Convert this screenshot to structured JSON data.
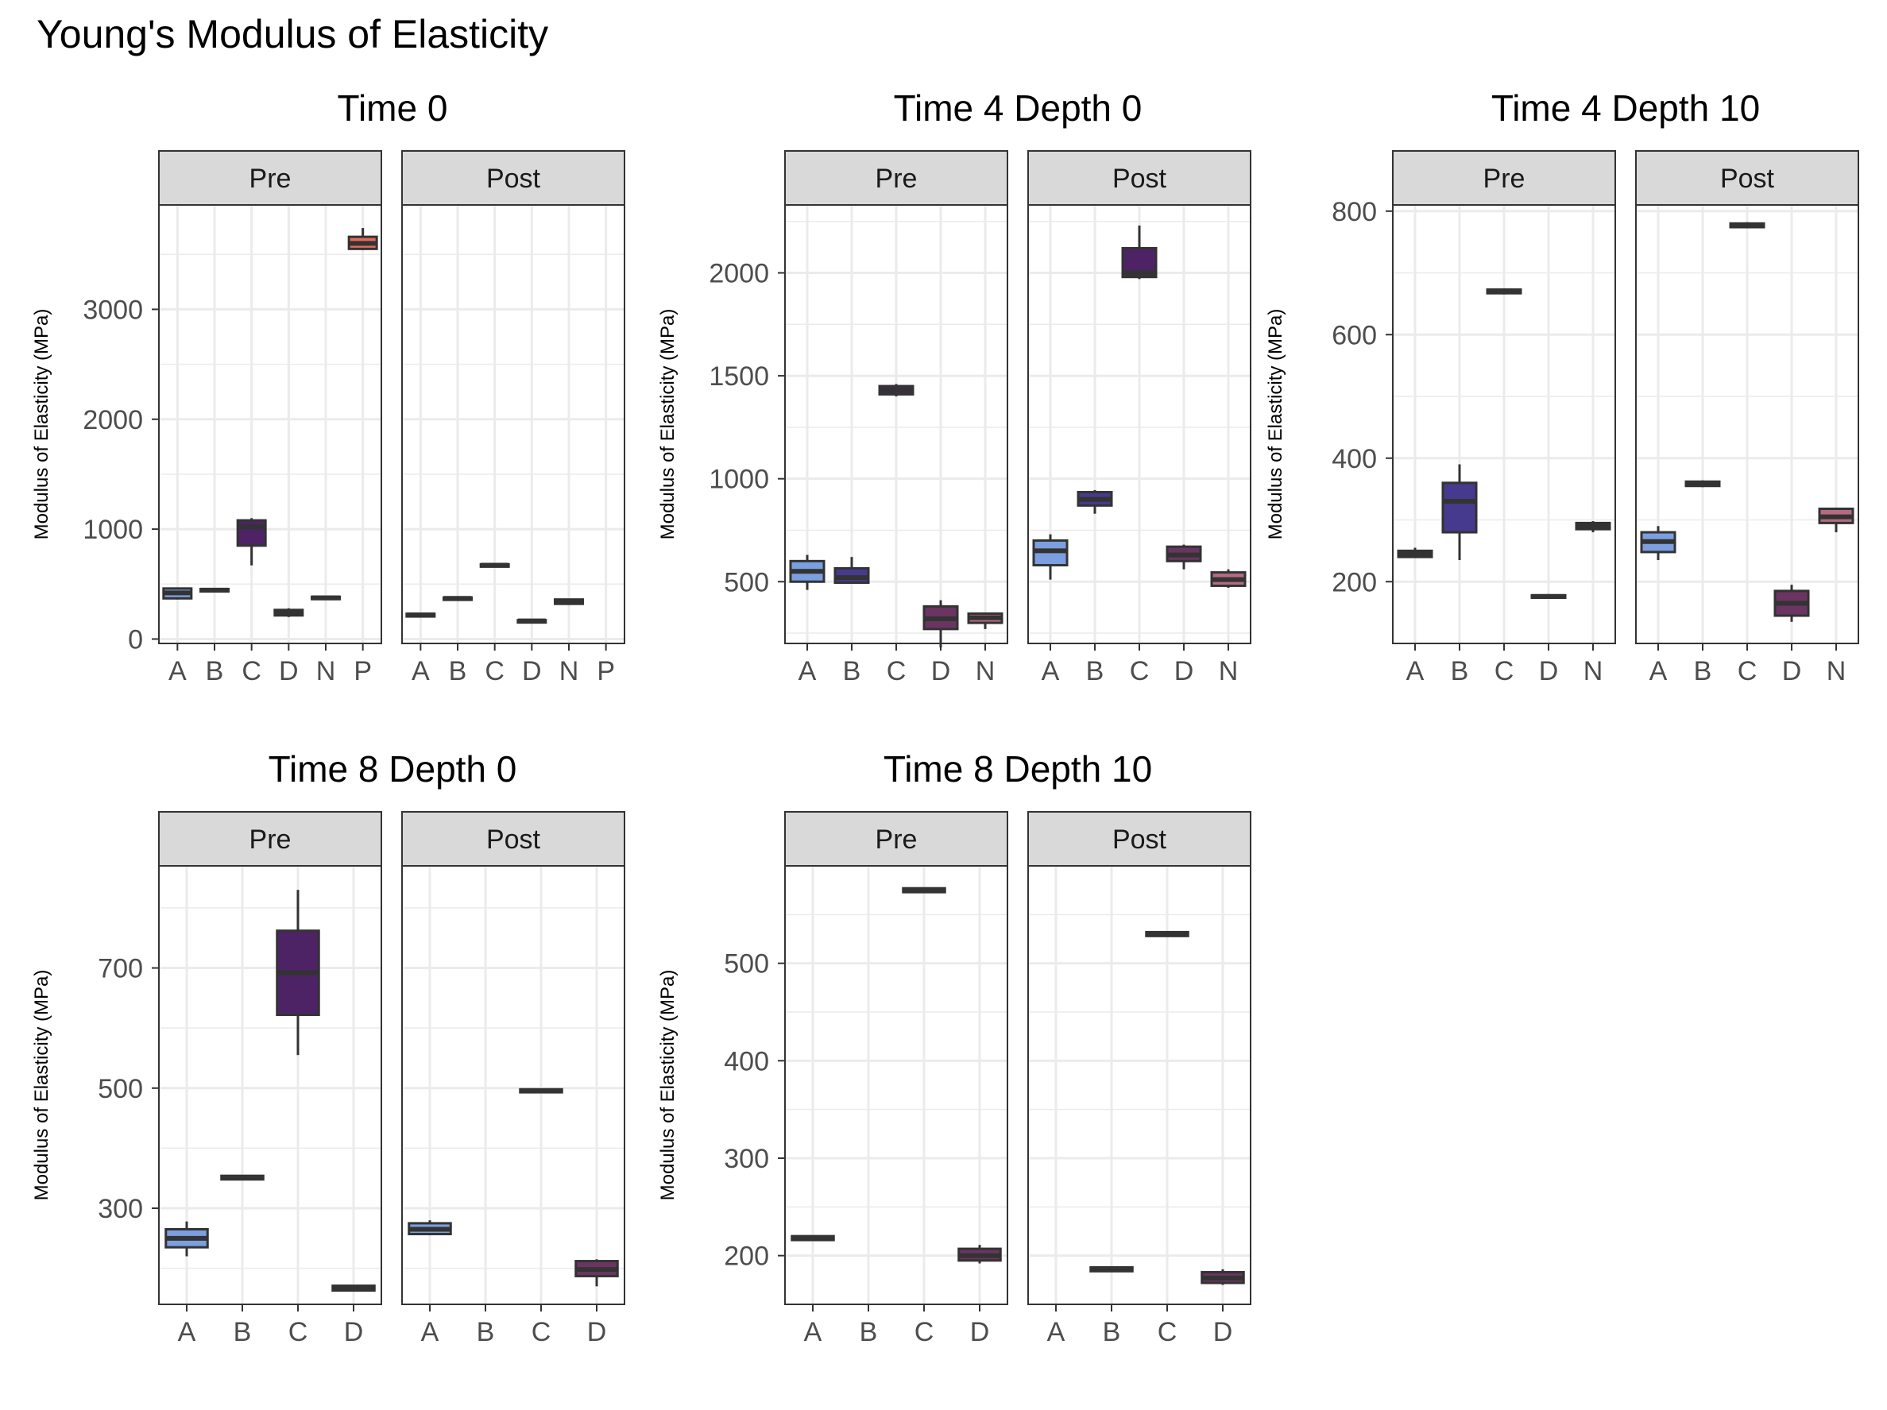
{
  "page": {
    "title": "Young's Modulus of Elasticity"
  },
  "colors": {
    "strip_bg": "#d9d9d9",
    "panel_border": "#333333",
    "grid": "#ebebeb",
    "box_line": "#333333",
    "A": "#7b9fe0",
    "B": "#463a8e",
    "C": "#4e2366",
    "D": "#6b3463",
    "N": "#b56b82",
    "P": "#e56a5c"
  },
  "chart_data": [
    {
      "type": "box",
      "title": "Time 0",
      "ylabel": "Modulus of Elasticity (MPa)",
      "ylim": [
        -40,
        3950
      ],
      "yticks": [
        0,
        1000,
        2000,
        3000
      ],
      "categories": [
        "A",
        "B",
        "C",
        "D",
        "N",
        "P"
      ],
      "facets": [
        {
          "label": "Pre",
          "boxes": [
            {
              "category": "A",
              "min": 360,
              "q1": 370,
              "median": 420,
              "q3": 460,
              "max": 470
            },
            {
              "category": "B",
              "min": 430,
              "q1": 435,
              "median": 445,
              "q3": 455,
              "max": 460
            },
            {
              "category": "C",
              "min": 670,
              "q1": 850,
              "median": 1020,
              "q3": 1080,
              "max": 1100
            },
            {
              "category": "D",
              "min": 200,
              "q1": 215,
              "median": 240,
              "q3": 265,
              "max": 280
            },
            {
              "category": "N",
              "min": 360,
              "q1": 365,
              "median": 375,
              "q3": 385,
              "max": 390
            },
            {
              "category": "P",
              "min": 3540,
              "q1": 3550,
              "median": 3600,
              "q3": 3660,
              "max": 3740
            }
          ]
        },
        {
          "label": "Post",
          "boxes": [
            {
              "category": "A",
              "min": 200,
              "q1": 205,
              "median": 220,
              "q3": 230,
              "max": 235
            },
            {
              "category": "B",
              "min": 355,
              "q1": 360,
              "median": 370,
              "q3": 378,
              "max": 382
            },
            {
              "category": "C",
              "min": 655,
              "q1": 660,
              "median": 672,
              "q3": 680,
              "max": 685
            },
            {
              "category": "D",
              "min": 150,
              "q1": 155,
              "median": 165,
              "q3": 172,
              "max": 175
            },
            {
              "category": "N",
              "min": 310,
              "q1": 320,
              "median": 340,
              "q3": 360,
              "max": 365
            }
          ]
        }
      ]
    },
    {
      "type": "box",
      "title": "Time 4 Depth 0",
      "ylabel": "Modulus of Elasticity (MPa)",
      "ylim": [
        200,
        2330
      ],
      "yticks": [
        500,
        1000,
        1500,
        2000
      ],
      "categories": [
        "A",
        "B",
        "C",
        "D",
        "N"
      ],
      "facets": [
        {
          "label": "Pre",
          "boxes": [
            {
              "category": "A",
              "min": 460,
              "q1": 500,
              "median": 550,
              "q3": 600,
              "max": 630
            },
            {
              "category": "B",
              "min": 490,
              "q1": 495,
              "median": 520,
              "q3": 565,
              "max": 620
            },
            {
              "category": "C",
              "min": 1400,
              "q1": 1410,
              "median": 1430,
              "q3": 1450,
              "max": 1460
            },
            {
              "category": "D",
              "min": 180,
              "q1": 270,
              "median": 320,
              "q3": 380,
              "max": 410
            },
            {
              "category": "N",
              "min": 270,
              "q1": 300,
              "median": 325,
              "q3": 345,
              "max": 350
            }
          ]
        },
        {
          "label": "Post",
          "boxes": [
            {
              "category": "A",
              "min": 510,
              "q1": 580,
              "median": 650,
              "q3": 700,
              "max": 730
            },
            {
              "category": "B",
              "min": 830,
              "q1": 870,
              "median": 900,
              "q3": 935,
              "max": 945
            },
            {
              "category": "C",
              "min": 1970,
              "q1": 1980,
              "median": 2000,
              "q3": 2120,
              "max": 2230
            },
            {
              "category": "D",
              "min": 560,
              "q1": 600,
              "median": 630,
              "q3": 670,
              "max": 680
            },
            {
              "category": "N",
              "min": 470,
              "q1": 480,
              "median": 510,
              "q3": 545,
              "max": 560
            }
          ]
        }
      ]
    },
    {
      "type": "box",
      "title": "Time 4 Depth 10",
      "ylabel": "Modulus of Elasticity (MPa)",
      "ylim": [
        100,
        810
      ],
      "yticks": [
        200,
        400,
        600,
        800
      ],
      "categories": [
        "A",
        "B",
        "C",
        "D",
        "N"
      ],
      "facets": [
        {
          "label": "Pre",
          "boxes": [
            {
              "category": "A",
              "min": 240,
              "q1": 240,
              "median": 245,
              "q3": 250,
              "max": 255
            },
            {
              "category": "B",
              "min": 235,
              "q1": 280,
              "median": 330,
              "q3": 360,
              "max": 390
            },
            {
              "category": "C",
              "min": 665,
              "q1": 667,
              "median": 670,
              "q3": 673,
              "max": 675
            },
            {
              "category": "D",
              "min": 172,
              "q1": 174,
              "median": 176,
              "q3": 178,
              "max": 180
            },
            {
              "category": "N",
              "min": 280,
              "q1": 285,
              "median": 290,
              "q3": 295,
              "max": 298
            }
          ]
        },
        {
          "label": "Post",
          "boxes": [
            {
              "category": "A",
              "min": 235,
              "q1": 248,
              "median": 265,
              "q3": 280,
              "max": 290
            },
            {
              "category": "B",
              "min": 353,
              "q1": 355,
              "median": 358,
              "q3": 362,
              "max": 364
            },
            {
              "category": "C",
              "min": 772,
              "q1": 774,
              "median": 777,
              "q3": 780,
              "max": 782
            },
            {
              "category": "D",
              "min": 135,
              "q1": 145,
              "median": 165,
              "q3": 185,
              "max": 195
            },
            {
              "category": "N",
              "min": 280,
              "q1": 295,
              "median": 305,
              "q3": 318,
              "max": 320
            }
          ]
        }
      ]
    },
    {
      "type": "box",
      "title": "Time 8 Depth 0",
      "ylabel": "Modulus of Elasticity (MPa)",
      "ylim": [
        140,
        870
      ],
      "yticks": [
        300,
        500,
        700
      ],
      "categories": [
        "A",
        "B",
        "C",
        "D"
      ],
      "facets": [
        {
          "label": "Pre",
          "boxes": [
            {
              "category": "A",
              "min": 220,
              "q1": 235,
              "median": 250,
              "q3": 265,
              "max": 278
            },
            {
              "category": "B",
              "min": 347,
              "q1": 348,
              "median": 351,
              "q3": 354,
              "max": 355
            },
            {
              "category": "C",
              "min": 555,
              "q1": 622,
              "median": 692,
              "q3": 762,
              "max": 830
            },
            {
              "category": "D",
              "min": 162,
              "q1": 163,
              "median": 167,
              "q3": 171,
              "max": 172
            }
          ]
        },
        {
          "label": "Post",
          "boxes": [
            {
              "category": "A",
              "min": 255,
              "q1": 257,
              "median": 265,
              "q3": 275,
              "max": 280
            },
            {
              "category": "C",
              "min": 492,
              "q1": 493,
              "median": 495,
              "q3": 498,
              "max": 499
            },
            {
              "category": "D",
              "min": 170,
              "q1": 187,
              "median": 198,
              "q3": 212,
              "max": 215
            }
          ]
        }
      ]
    },
    {
      "type": "box",
      "title": "Time 8 Depth 10",
      "ylabel": "Modulus of Elasticity (MPa)",
      "ylim": [
        150,
        600
      ],
      "yticks": [
        200,
        300,
        400,
        500
      ],
      "categories": [
        "A",
        "B",
        "C",
        "D"
      ],
      "facets": [
        {
          "label": "Pre",
          "boxes": [
            {
              "category": "A",
              "min": 216,
              "q1": 216,
              "median": 218,
              "q3": 220,
              "max": 220
            },
            {
              "category": "C",
              "min": 573,
              "q1": 573,
              "median": 575,
              "q3": 577,
              "max": 577
            },
            {
              "category": "D",
              "min": 192,
              "q1": 195,
              "median": 200,
              "q3": 207,
              "max": 211
            }
          ]
        },
        {
          "label": "Post",
          "boxes": [
            {
              "category": "B",
              "min": 184,
              "q1": 184,
              "median": 186,
              "q3": 188,
              "max": 188
            },
            {
              "category": "C",
              "min": 528,
              "q1": 528,
              "median": 530,
              "q3": 532,
              "max": 532
            },
            {
              "category": "D",
              "min": 170,
              "q1": 172,
              "median": 177,
              "q3": 183,
              "max": 186
            }
          ]
        }
      ]
    }
  ]
}
